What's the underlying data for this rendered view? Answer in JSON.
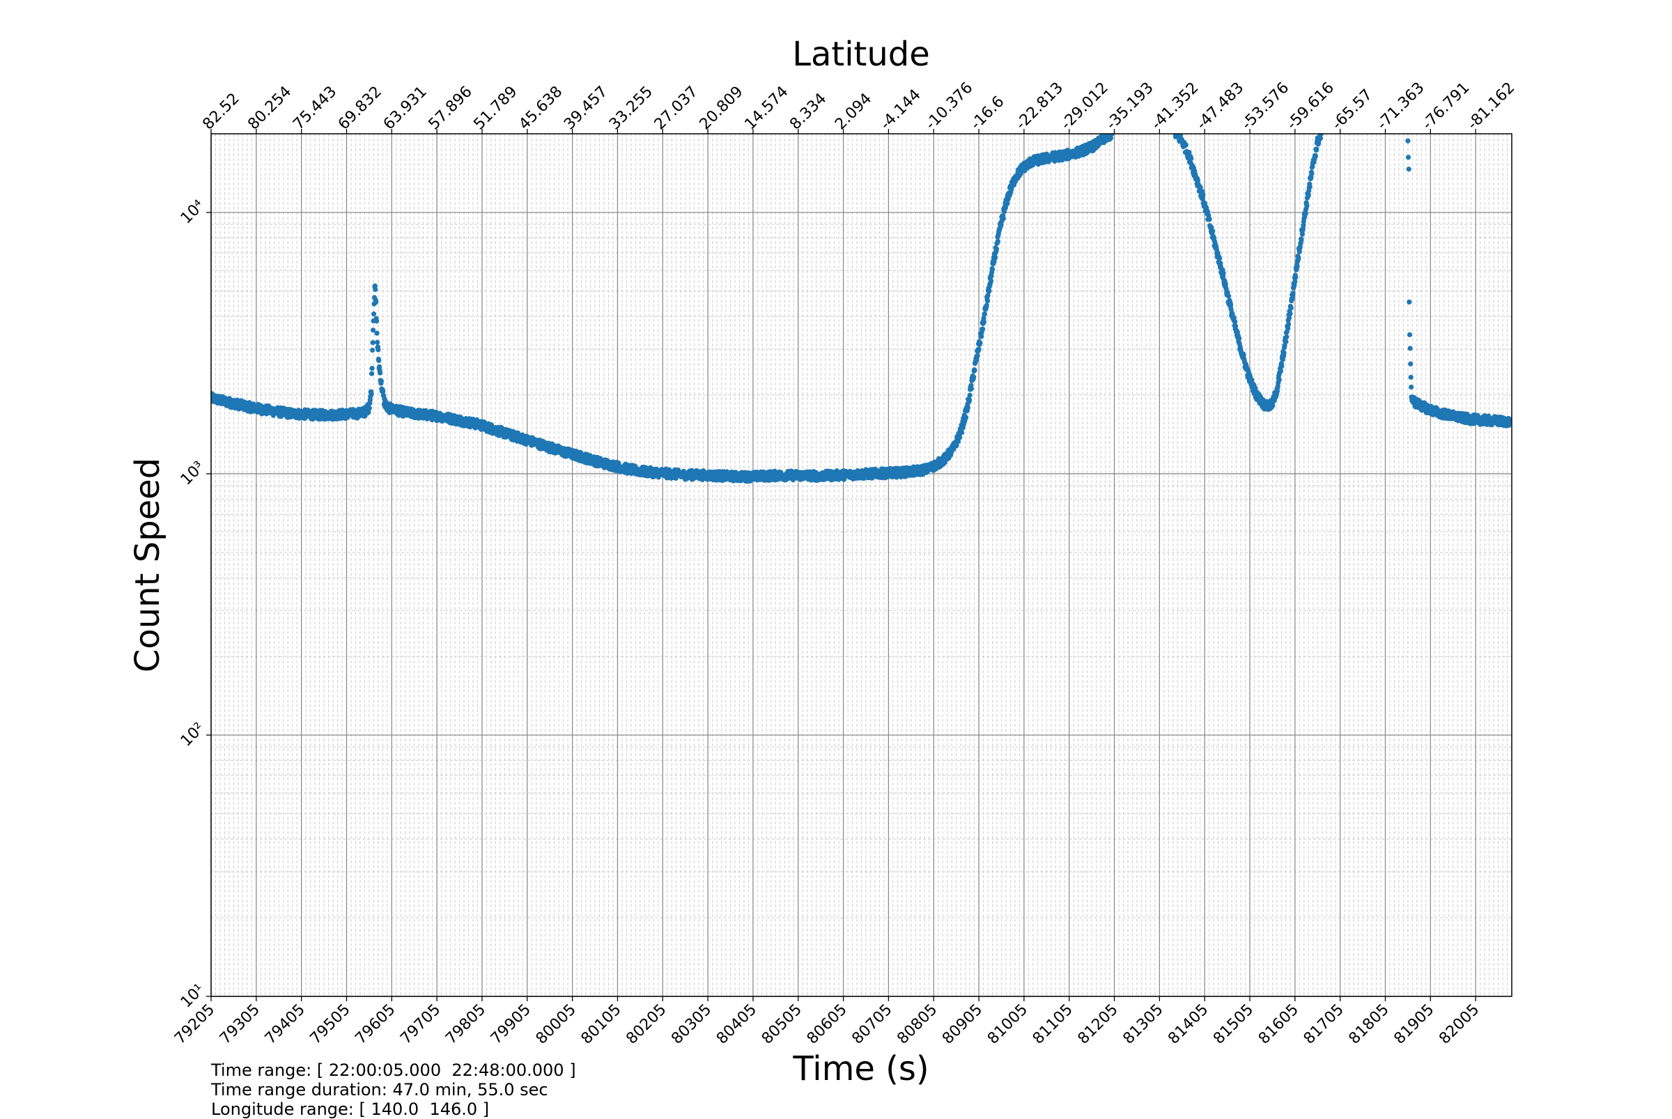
{
  "chart_data": {
    "type": "scatter",
    "title": "Latitude",
    "xlabel": "Time (s)",
    "ylabel": "Count Speed",
    "yscale": "log",
    "ylim": [
      10,
      20000
    ],
    "xlim": [
      79205,
      82085
    ],
    "grid": true,
    "marker_color": "#1f77b4",
    "x_ticks": [
      "79205",
      "79305",
      "79405",
      "79505",
      "79605",
      "79705",
      "79805",
      "79905",
      "80005",
      "80105",
      "80205",
      "80305",
      "80405",
      "80505",
      "80605",
      "80705",
      "80805",
      "80905",
      "81005",
      "81105",
      "81205",
      "81305",
      "81405",
      "81505",
      "81605",
      "81705",
      "81805",
      "81905",
      "82005"
    ],
    "y_ticks": [
      {
        "value": 10,
        "label": "10¹"
      },
      {
        "value": 100,
        "label": "10²"
      },
      {
        "value": 1000,
        "label": "10³"
      },
      {
        "value": 10000,
        "label": "10⁴"
      }
    ],
    "latitude_ticks": [
      "82.52",
      "80.254",
      "75.443",
      "69.832",
      "63.931",
      "57.896",
      "51.789",
      "45.638",
      "39.457",
      "33.255",
      "27.037",
      "20.809",
      "14.574",
      "8.334",
      "2.094",
      "-4.144",
      "-10.376",
      "-16.6",
      "-22.813",
      "-29.012",
      "-35.193",
      "-41.352",
      "-47.483",
      "-53.576",
      "-59.616",
      "-65.57",
      "-71.363",
      "-76.791",
      "-81.162"
    ],
    "series_points": [
      [
        79205,
        1950
      ],
      [
        79230,
        1900
      ],
      [
        79260,
        1850
      ],
      [
        79290,
        1800
      ],
      [
        79320,
        1760
      ],
      [
        79350,
        1730
      ],
      [
        79380,
        1700
      ],
      [
        79410,
        1690
      ],
      [
        79440,
        1680
      ],
      [
        79470,
        1680
      ],
      [
        79500,
        1690
      ],
      [
        79530,
        1700
      ],
      [
        79545,
        1720
      ],
      [
        79555,
        1800
      ],
      [
        79560,
        2100
      ],
      [
        79563,
        3300
      ],
      [
        79566,
        4600
      ],
      [
        79568,
        5200
      ],
      [
        79570,
        4400
      ],
      [
        79573,
        3200
      ],
      [
        79577,
        2600
      ],
      [
        79582,
        2200
      ],
      [
        79588,
        1900
      ],
      [
        79595,
        1790
      ],
      [
        79620,
        1740
      ],
      [
        79650,
        1700
      ],
      [
        79680,
        1680
      ],
      [
        79710,
        1660
      ],
      [
        79740,
        1620
      ],
      [
        79770,
        1580
      ],
      [
        79800,
        1540
      ],
      [
        79830,
        1480
      ],
      [
        79860,
        1420
      ],
      [
        79890,
        1370
      ],
      [
        79920,
        1320
      ],
      [
        79950,
        1270
      ],
      [
        79980,
        1220
      ],
      [
        80010,
        1180
      ],
      [
        80040,
        1140
      ],
      [
        80070,
        1100
      ],
      [
        80100,
        1070
      ],
      [
        80130,
        1040
      ],
      [
        80160,
        1020
      ],
      [
        80190,
        1010
      ],
      [
        80220,
        1000
      ],
      [
        80250,
        990
      ],
      [
        80280,
        990
      ],
      [
        80310,
        985
      ],
      [
        80340,
        980
      ],
      [
        80370,
        975
      ],
      [
        80400,
        975
      ],
      [
        80430,
        980
      ],
      [
        80460,
        985
      ],
      [
        80490,
        985
      ],
      [
        80520,
        985
      ],
      [
        80550,
        980
      ],
      [
        80580,
        985
      ],
      [
        80610,
        990
      ],
      [
        80640,
        995
      ],
      [
        80670,
        1000
      ],
      [
        80700,
        1005
      ],
      [
        80730,
        1010
      ],
      [
        80760,
        1020
      ],
      [
        80790,
        1040
      ],
      [
        80810,
        1080
      ],
      [
        80830,
        1140
      ],
      [
        80850,
        1260
      ],
      [
        80865,
        1450
      ],
      [
        80880,
        1800
      ],
      [
        80895,
        2500
      ],
      [
        80910,
        3400
      ],
      [
        80925,
        4800
      ],
      [
        80940,
        6800
      ],
      [
        80955,
        9200
      ],
      [
        80970,
        11600
      ],
      [
        80985,
        13500
      ],
      [
        81000,
        14700
      ],
      [
        81020,
        15600
      ],
      [
        81045,
        16000
      ],
      [
        81070,
        16300
      ],
      [
        81100,
        16600
      ],
      [
        81130,
        17100
      ],
      [
        81160,
        18000
      ],
      [
        81185,
        19300
      ],
      [
        81200,
        20000
      ],
      [
        81340,
        20000
      ],
      [
        81355,
        18800
      ],
      [
        81370,
        16500
      ],
      [
        81385,
        13800
      ],
      [
        81400,
        11500
      ],
      [
        81415,
        9200
      ],
      [
        81430,
        7300
      ],
      [
        81445,
        5800
      ],
      [
        81460,
        4500
      ],
      [
        81475,
        3500
      ],
      [
        81490,
        2800
      ],
      [
        81505,
        2300
      ],
      [
        81520,
        2000
      ],
      [
        81535,
        1850
      ],
      [
        81545,
        1800
      ],
      [
        81555,
        1850
      ],
      [
        81565,
        2100
      ],
      [
        81575,
        2600
      ],
      [
        81585,
        3300
      ],
      [
        81595,
        4300
      ],
      [
        81605,
        5600
      ],
      [
        81615,
        7300
      ],
      [
        81625,
        9400
      ],
      [
        81635,
        12000
      ],
      [
        81645,
        15200
      ],
      [
        81655,
        18600
      ],
      [
        81663,
        20000
      ],
      [
        81855,
        18200
      ],
      [
        81856,
        16000
      ],
      [
        81857,
        15000
      ],
      [
        81858,
        4700
      ],
      [
        81859,
        3300
      ],
      [
        81860,
        2900
      ],
      [
        81861,
        2700
      ],
      [
        81863,
        1950
      ],
      [
        81870,
        1880
      ],
      [
        81890,
        1800
      ],
      [
        81910,
        1740
      ],
      [
        81930,
        1700
      ],
      [
        81950,
        1670
      ],
      [
        81970,
        1640
      ],
      [
        81990,
        1620
      ],
      [
        82010,
        1610
      ],
      [
        82030,
        1600
      ],
      [
        82055,
        1590
      ],
      [
        82080,
        1580
      ]
    ]
  },
  "info": {
    "time_range": "Time range: [ 22:00:05.000  22:48:00.000 ]",
    "duration": "Time range duration: 47.0 min, 55.0 sec",
    "longitude": "Longitude range: [ 140.0  146.0 ]"
  }
}
